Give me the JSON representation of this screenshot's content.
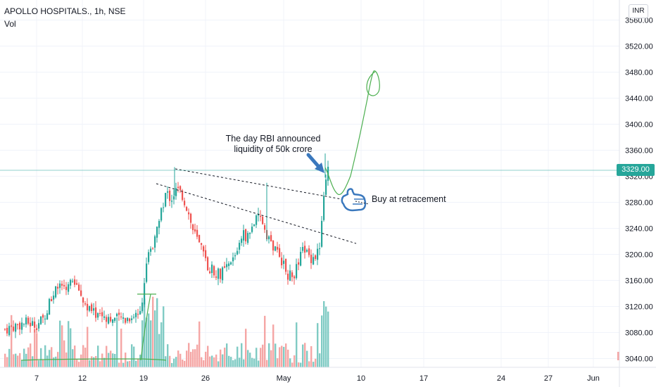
{
  "header": {
    "symbol_line": "APOLLO HOSPITALS., 1h, NSE",
    "volume_label": "Vol",
    "currency_button": "INR"
  },
  "price_scale": {
    "last_price_tag": "3329.00"
  },
  "annotations": {
    "rbi_line1": "The day RBI announced",
    "rbi_line2": "liquidity of 50k crore",
    "buy_note": "Buy at retracement"
  },
  "colors": {
    "up": "#26a69a",
    "down": "#ef5350",
    "volume_up": "#80cbc4",
    "volume_down": "#f5a6a5",
    "drawing_green": "#4caf50",
    "arrow_blue": "#3a78bd"
  },
  "chart_data": {
    "type": "candlestick",
    "ylim": [
      3020,
      3580
    ],
    "x_tick_labels": [
      "7",
      "12",
      "19",
      "26",
      "May",
      "10",
      "17",
      "24",
      "27",
      "Jun"
    ],
    "y_tick_labels": [
      "3040.00",
      "3080.00",
      "3120.00",
      "3160.00",
      "3200.00",
      "3240.00",
      "3280.00",
      "3320.00",
      "3360.00",
      "3400.00",
      "3440.00",
      "3480.00",
      "3520.00",
      "3560.00"
    ],
    "last_price": 3329.0,
    "trendlines": [
      {
        "name": "upper",
        "from": [
          3333,
          "Apr 22"
        ],
        "to": [
          3287,
          "May 8"
        ]
      },
      {
        "name": "lower",
        "from": [
          3309,
          "Apr 19"
        ],
        "to": [
          3220,
          "May 10"
        ]
      }
    ]
  }
}
